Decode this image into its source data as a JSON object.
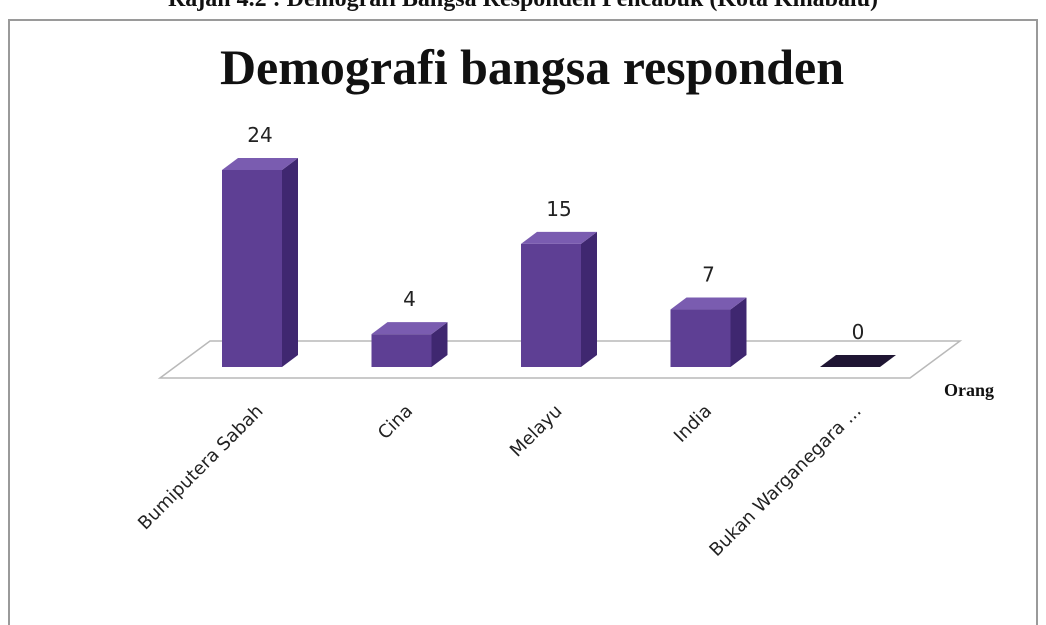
{
  "caption": "Rajah 4.2 : Demografi Bangsa Responden Pencabuk (Kota Kinabalu)",
  "chart_data": {
    "type": "bar",
    "title": "Demografi bangsa responden",
    "categories": [
      "Bumiputera Sabah",
      "Cina",
      "Melayu",
      "India",
      "Bukan Warganegara ..."
    ],
    "series": [
      {
        "values": [
          24,
          4,
          15,
          7,
          0
        ]
      }
    ],
    "data_labels": [
      "24",
      "4",
      "15",
      "7",
      "0"
    ],
    "value_axis_label": "Orang",
    "ylim": [
      0,
      24
    ],
    "grid": false,
    "legend": "none",
    "style": "3d",
    "colors": {
      "bar_front": "#5e3f94",
      "bar_side": "#3f2770",
      "bar_top": "#7a5cb0",
      "floor_line": "#b9b9b9"
    }
  }
}
